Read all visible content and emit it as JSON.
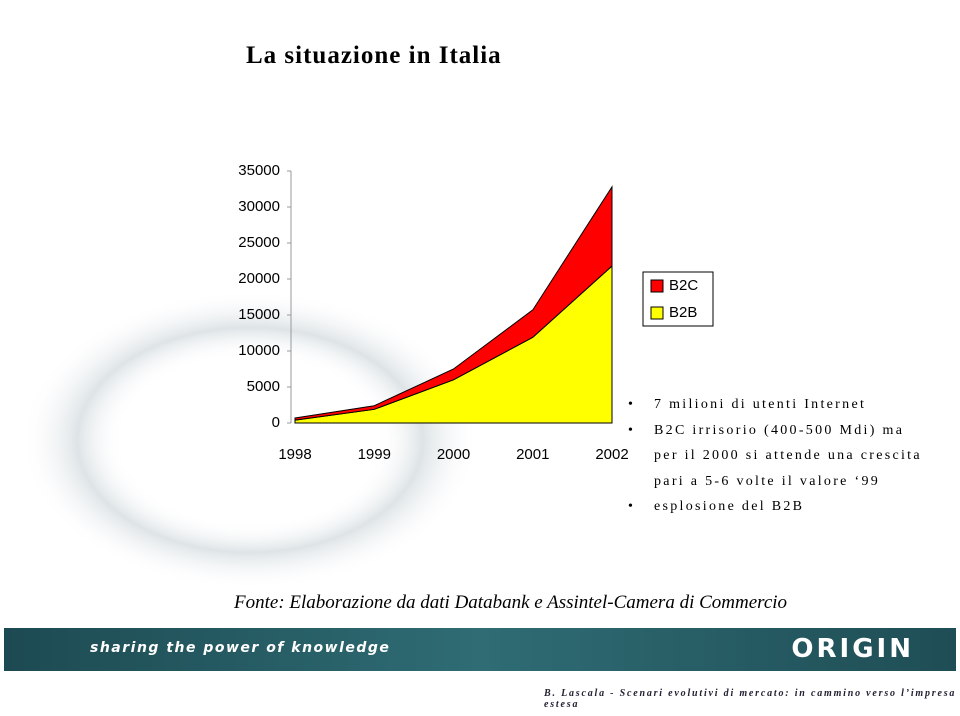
{
  "slide": {
    "title": "La situazione in Italia",
    "bullets": [
      "7 milioni di utenti Internet",
      "B2C irrisorio (400-500 Mdi) ma per il 2000 si attende una crescita pari a 5-6 volte il valore ‘99",
      "esplosione del B2B"
    ],
    "source": "Fonte: Elaborazione da dati Databank e Assintel-Camera di Commercio",
    "banner": "sharing the power of knowledge",
    "logo": "ORIGIN",
    "footer": "B. Lascala - Scenari evolutivi di mercato: in cammino verso l’impresa estesa"
  },
  "chart_data": {
    "type": "stacked-area",
    "categories": [
      "1998",
      "1999",
      "2000",
      "2001",
      "2002"
    ],
    "series": [
      {
        "name": "B2B",
        "color": "#ffff00",
        "values": [
          400,
          1900,
          6000,
          11900,
          21800
        ]
      },
      {
        "name": "B2C",
        "color": "#ff0000",
        "values": [
          300,
          500,
          1500,
          3800,
          11000
        ]
      }
    ],
    "ylim": [
      0,
      35000
    ],
    "yticks": [
      0,
      5000,
      10000,
      15000,
      20000,
      25000,
      30000,
      35000
    ]
  }
}
